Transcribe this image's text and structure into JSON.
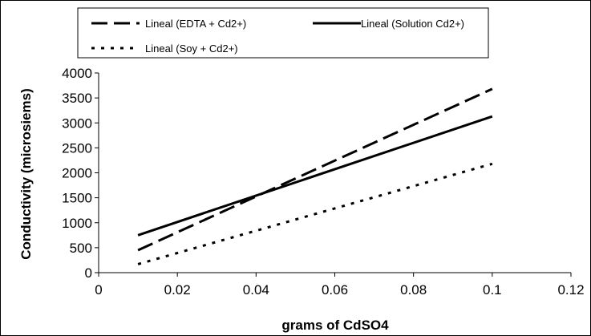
{
  "chart_data": {
    "type": "line",
    "xlabel": "grams of CdSO4",
    "ylabel": "Conductivity (microsiems)",
    "xlim": [
      0,
      0.12
    ],
    "ylim": [
      0,
      4000
    ],
    "x_ticks": [
      "0",
      "0.02",
      "0.04",
      "0.06",
      "0.08",
      "0.1",
      "0.12"
    ],
    "y_ticks": [
      "0",
      "500",
      "1000",
      "1500",
      "2000",
      "2500",
      "3000",
      "3500",
      "4000"
    ],
    "grid": false,
    "legend_position": "top",
    "series": [
      {
        "name": "Lineal (EDTA + Cd2+)",
        "style": "dashed",
        "x": [
          0.01,
          0.1
        ],
        "y": [
          450,
          3680
        ]
      },
      {
        "name": "Lineal (Solution Cd2+)",
        "style": "solid",
        "x": [
          0.01,
          0.1
        ],
        "y": [
          750,
          3130
        ]
      },
      {
        "name": "Lineal (Soy + Cd2+)",
        "style": "dotted",
        "x": [
          0.01,
          0.1
        ],
        "y": [
          170,
          2180
        ]
      }
    ]
  }
}
